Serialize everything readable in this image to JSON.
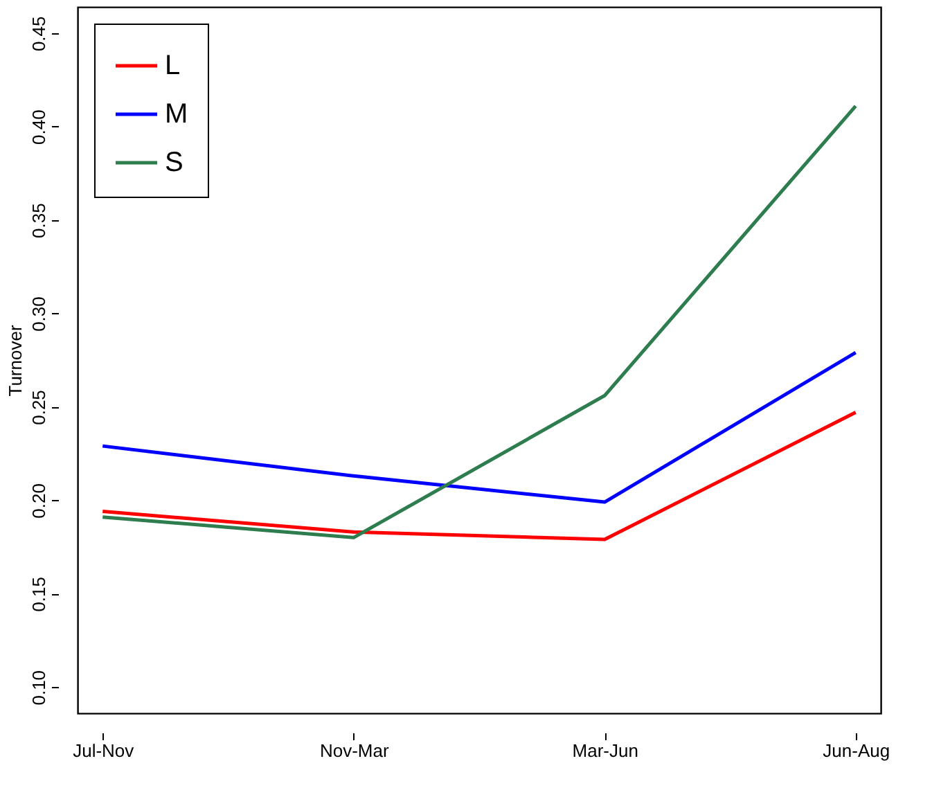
{
  "chart_data": {
    "type": "line",
    "ylabel": "Turnover",
    "categories": [
      "Jul-Nov",
      "Nov-Mar",
      "Mar-Jun",
      "Jun-Aug"
    ],
    "series": [
      {
        "name": "L",
        "color": "#ff0000",
        "values": [
          0.194,
          0.183,
          0.179,
          0.247
        ]
      },
      {
        "name": "M",
        "color": "#0000ff",
        "values": [
          0.229,
          0.213,
          0.199,
          0.279
        ]
      },
      {
        "name": "S",
        "color": "#2e7d4f",
        "values": [
          0.191,
          0.18,
          0.256,
          0.411
        ]
      }
    ],
    "ylim": [
      0.086,
      0.464
    ],
    "yticks": [
      {
        "value": 0.1,
        "label": "0.10"
      },
      0.15,
      {
        "value": 0.2,
        "label": "0.20"
      },
      0.25,
      {
        "value": 0.3,
        "label": "0.30"
      },
      0.35,
      {
        "value": 0.4,
        "label": "0.40"
      },
      0.45
    ],
    "grid": false,
    "legend": "top left",
    "marker": "none",
    "line_style": "solid"
  }
}
